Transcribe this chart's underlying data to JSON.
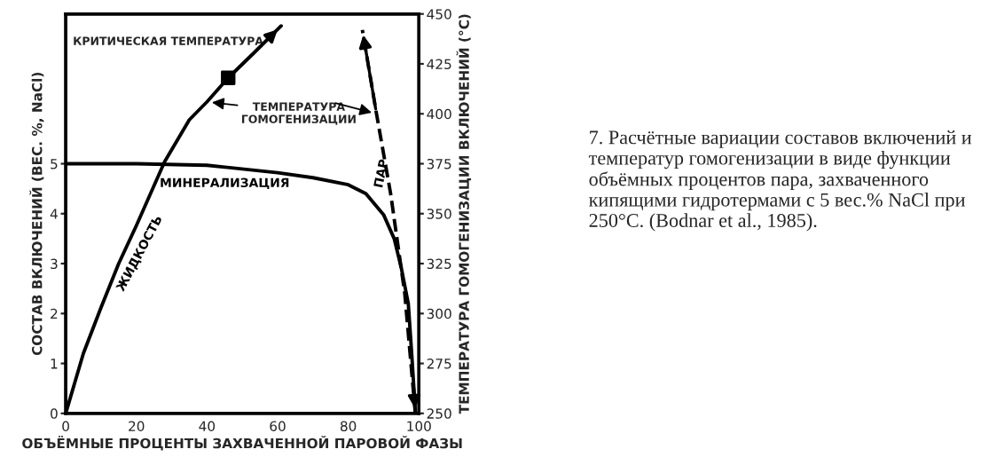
{
  "chart_data": {
    "type": "line",
    "xlabel": "ОБЪЁМНЫЕ ПРОЦЕНТЫ ЗАХВАЧЕННОЙ ПАРОВОЙ ФАЗЫ",
    "ylabel": "СОСТАВ ВКЛЮЧЕНИЙ (ВЕС. %, NaCl)",
    "y2label": "ТЕМПЕРАТУРА ГОМОГЕНИЗАЦИИ ВКЛЮЧЕНИЙ (°C)",
    "xlim": [
      0,
      100
    ],
    "xticks": [
      0,
      20,
      40,
      60,
      80,
      100
    ],
    "ylim": [
      0,
      8
    ],
    "yticks": [
      0,
      1,
      2,
      3,
      4,
      5
    ],
    "y2lim": [
      250,
      450
    ],
    "y2ticks": [
      250,
      275,
      300,
      325,
      350,
      375,
      400,
      425,
      450
    ],
    "grid": false,
    "legend": false,
    "series": [
      {
        "name": "МИНЕРАЛИЗАЦИЯ",
        "color": "#000000",
        "line_style": "solid",
        "x": [
          0,
          20,
          40,
          60,
          70,
          80,
          85,
          90,
          93,
          95,
          97,
          98,
          98.5,
          99
        ],
        "values": [
          5.0,
          5.0,
          4.97,
          4.82,
          4.72,
          4.58,
          4.4,
          3.98,
          3.5,
          2.92,
          2.2,
          1.16,
          0.6,
          0
        ]
      },
      {
        "name": "ЖИДКОСТЬ",
        "color": "#000000",
        "axis": "y2",
        "line_style": "solid",
        "x": [
          0,
          5,
          10,
          15,
          20,
          28,
          35,
          40,
          46,
          53,
          61
        ],
        "values": [
          250,
          280,
          303,
          325,
          344,
          376,
          397,
          406,
          418,
          430,
          444
        ]
      },
      {
        "name": "ПАР",
        "color": "#000000",
        "axis": "y2",
        "line_style": "dashed",
        "x": [
          99,
          98,
          96,
          92,
          88,
          84
        ],
        "values": [
          250,
          270,
          310,
          360,
          400,
          442
        ]
      },
      {
        "type": "scatter",
        "color": "#000000",
        "axis": "y2",
        "marker": "square",
        "x": [
          46
        ],
        "values": [
          418
        ]
      }
    ],
    "annotations": [
      "КРИТИЧЕСКАЯ ТЕМПЕРАТУРА",
      "ТЕМПЕРАТУРА\nГОМОГЕНИЗАЦИИ",
      "7. Расчётные вариации составов включений и температур гомогенизации в виде функции объёмных процентов пара, захваченного кипящими гидротермами с 5 вес.% NaCl при 250°C. (Bodnar et al., 1985)."
    ]
  }
}
